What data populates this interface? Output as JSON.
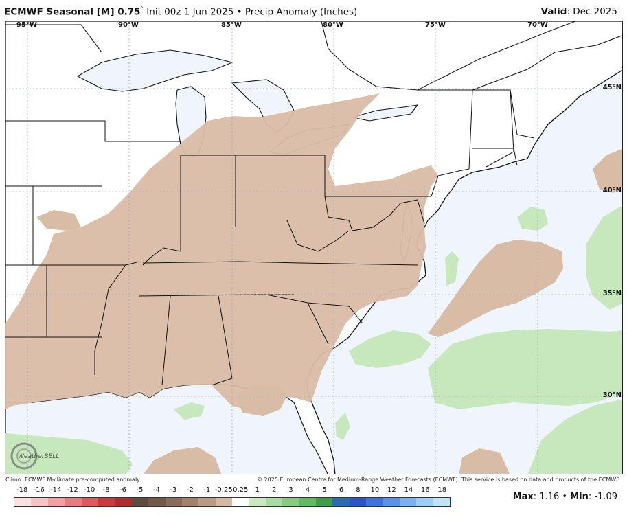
{
  "header": {
    "model": "ECMWF Seasonal [M] 0.75",
    "degree": "°",
    "rest": " Init 00z 1 Jun 2025 • Precip Anomaly (Inches)",
    "valid_label": "Valid",
    "valid_value": ": Dec 2025"
  },
  "longitudes": [
    "95°W",
    "90°W",
    "85°W",
    "80°W",
    "75°W",
    "70°W"
  ],
  "latitudes": [
    "45°N",
    "40°N",
    "35°N",
    "30°N"
  ],
  "footer": {
    "climo": "Climo: ECMWF M-climate pre-computed anomaly",
    "copyright": "© 2025 European Centre for Medium-Range Weather Forecasts (ECMWF). This service is based on data and products of the ECMWF.",
    "max_label": "Max",
    "max_value": ": 1.16 • ",
    "min_label": "Min",
    "min_value": ": -1.09",
    "logo_text": "WeatherBELL"
  },
  "colorbar": {
    "ticks": [
      "-18",
      "-16",
      "-14",
      "-12",
      "-10",
      "-8",
      "-6",
      "-5",
      "-4",
      "-3",
      "-2",
      "-1",
      "-0.25",
      "0.25",
      "1",
      "2",
      "3",
      "4",
      "5",
      "6",
      "8",
      "10",
      "12",
      "14",
      "16",
      "18"
    ],
    "colors": [
      "#fde0e0",
      "#f9c2c4",
      "#f3a0a3",
      "#ea7b80",
      "#de5a5f",
      "#cc3a40",
      "#b02a30",
      "#5e4a3e",
      "#74594a",
      "#8b6c5a",
      "#a3826d",
      "#bb9b85",
      "#d6b9a3",
      "#ffffff",
      "#c8e8c0",
      "#a8dca0",
      "#85cc80",
      "#62ba62",
      "#3e9f48",
      "#2b6cb0",
      "#2a55c8",
      "#3f72e0",
      "#5b92ec",
      "#7bb0f2",
      "#9dccf6",
      "#bfe4fa"
    ]
  },
  "map": {
    "ocean_color": "#eff4fd",
    "land_color": "#ffffff",
    "negative_anomaly_color": "#d9bca5",
    "positive_anomaly_color": "#c6e8bc"
  }
}
